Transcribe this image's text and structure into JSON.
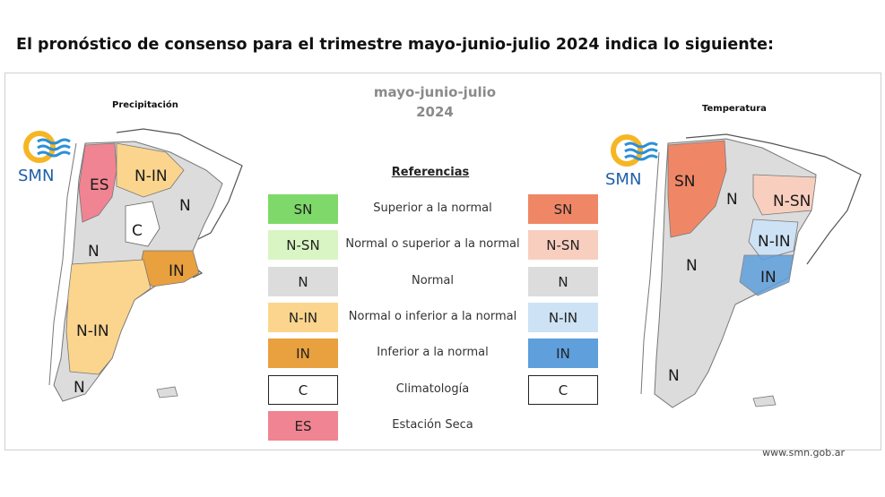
{
  "headline": "El pronóstico de consenso para el trimestre mayo-junio-julio 2024 indica lo siguiente:",
  "period": {
    "line1": "mayo-junio-julio",
    "line2": "2024"
  },
  "logo_text": "SMN",
  "precip_map": {
    "title": "Precipitación",
    "labels": [
      "ES",
      "N-IN",
      "N",
      "C",
      "N",
      "IN",
      "N-IN",
      "N"
    ]
  },
  "temp_map": {
    "title": "Temperatura",
    "labels": [
      "SN",
      "N",
      "N-SN",
      "N-IN",
      "N",
      "IN",
      "N"
    ]
  },
  "legend": {
    "title": "Referencias",
    "descriptions": [
      "Superior a la normal",
      "Normal o superior a la normal",
      "Normal",
      "Normal o inferior a la normal",
      "Inferior a la normal",
      "Climatología",
      "Estación Seca"
    ],
    "precip_boxes": [
      {
        "label": "SN",
        "color": "#7fd96a"
      },
      {
        "label": "N-SN",
        "color": "#d9f5c3"
      },
      {
        "label": "N",
        "color": "#dcdcdc"
      },
      {
        "label": "N-IN",
        "color": "#fbd58e"
      },
      {
        "label": "IN",
        "color": "#e9a03f"
      },
      {
        "label": "C",
        "color": "#ffffff"
      },
      {
        "label": "ES",
        "color": "#f08492"
      }
    ],
    "temp_boxes": [
      {
        "label": "SN",
        "color": "#ef8766"
      },
      {
        "label": "N-SN",
        "color": "#f8cfbf"
      },
      {
        "label": "N",
        "color": "#dcdcdc"
      },
      {
        "label": "N-IN",
        "color": "#cde2f5"
      },
      {
        "label": "IN",
        "color": "#5e9fdc"
      },
      {
        "label": "C",
        "color": "#ffffff"
      }
    ]
  },
  "footer": "www.smn.gob.ar"
}
